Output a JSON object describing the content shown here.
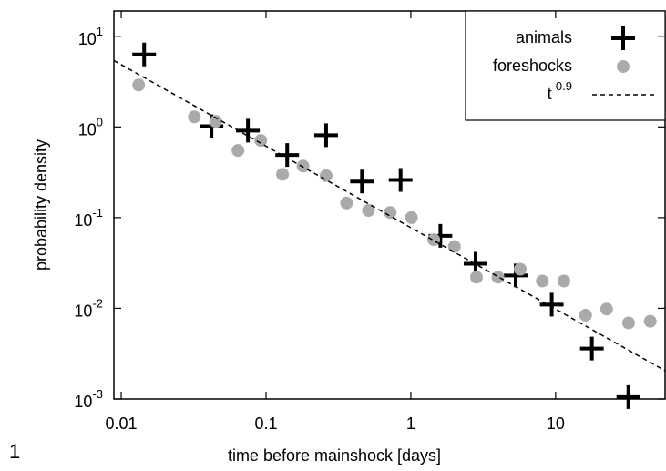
{
  "chart_data": {
    "type": "scatter",
    "xlabel": "time before mainshock [days]",
    "ylabel": "probability density",
    "panel_label": "1",
    "xscale": "log",
    "yscale": "log",
    "xlim": [
      0.0089,
      57
    ],
    "ylim": [
      0.001,
      19
    ],
    "xticks": [
      0.01,
      0.1,
      1,
      10
    ],
    "yticks": [
      {
        "value": 0.001,
        "label": "10^-3"
      },
      {
        "value": 0.01,
        "label": "10^-2"
      },
      {
        "value": 0.1,
        "label": "10^-1"
      },
      {
        "value": 1,
        "label": "10^0"
      },
      {
        "value": 10,
        "label": "10^1"
      }
    ],
    "legend": "upper right",
    "series": [
      {
        "name": "animals",
        "color": "#000000",
        "marker": "plus",
        "x": [
          0.0144,
          0.042,
          0.075,
          0.14,
          0.26,
          0.46,
          0.85,
          1.6,
          2.8,
          5.3,
          9.4,
          17.8,
          31.8
        ],
        "values": [
          6.3,
          1.02,
          0.91,
          0.49,
          0.81,
          0.25,
          0.26,
          0.063,
          0.031,
          0.023,
          0.011,
          0.0036,
          0.00105
        ]
      },
      {
        "name": "foreshocks",
        "color": "#aaaaaa",
        "marker": "circle",
        "x": [
          0.0132,
          0.032,
          0.045,
          0.064,
          0.092,
          0.13,
          0.18,
          0.26,
          0.36,
          0.51,
          0.72,
          1.01,
          1.44,
          2.0,
          2.84,
          4.0,
          5.7,
          8.1,
          11.4,
          16.1,
          22.5,
          31.9,
          45
        ],
        "values": [
          2.9,
          1.29,
          1.15,
          0.55,
          0.71,
          0.3,
          0.37,
          0.29,
          0.145,
          0.12,
          0.114,
          0.1,
          0.057,
          0.048,
          0.022,
          0.022,
          0.027,
          0.02,
          0.02,
          0.0084,
          0.0098,
          0.0069,
          0.0072
        ]
      },
      {
        "name": "t^-0.9",
        "color": "#000000",
        "marker": "dashed-line",
        "x": [
          0.0089,
          57
        ],
        "values": [
          5.4,
          0.00205
        ]
      }
    ]
  }
}
